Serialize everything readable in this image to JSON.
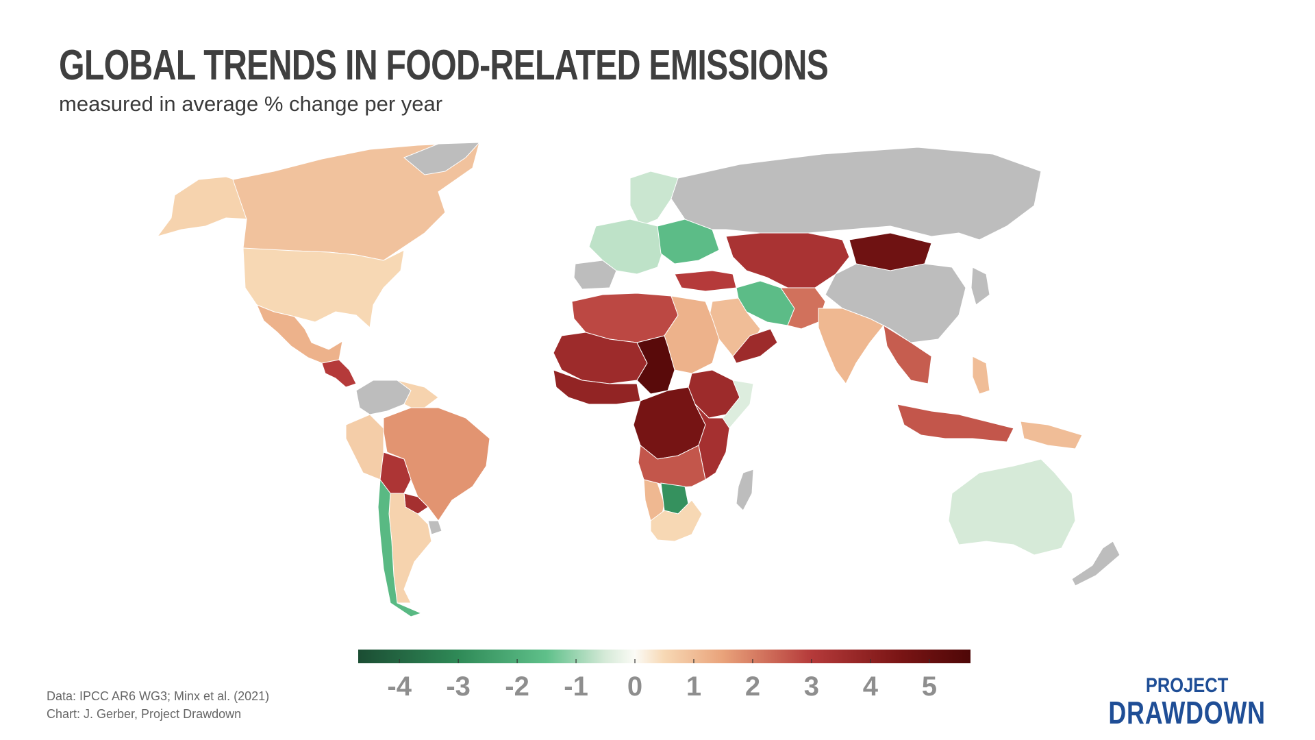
{
  "title": "GLOBAL TRENDS IN FOOD-RELATED EMISSIONS",
  "subtitle": "measured in average % change per year",
  "source": {
    "line1": "Data: IPCC AR6 WG3; Minx et al. (2021)",
    "line2": "Chart: J. Gerber, Project Drawdown"
  },
  "logo": {
    "line1": "PROJECT",
    "line2": "DRAWDOWN",
    "color": "#1f4e96"
  },
  "colors": {
    "no_data": "#bdbdbd",
    "background": "#ffffff",
    "scale": [
      {
        "v": -4.7,
        "c": "#1b4d33"
      },
      {
        "v": -3.0,
        "c": "#2f8a57"
      },
      {
        "v": -1.5,
        "c": "#5fc08a"
      },
      {
        "v": -0.5,
        "c": "#d6ead8"
      },
      {
        "v": 0.0,
        "c": "#fbfbf6"
      },
      {
        "v": 0.5,
        "c": "#f7d8b4"
      },
      {
        "v": 1.5,
        "c": "#e9a27a"
      },
      {
        "v": 3.0,
        "c": "#b53a3a"
      },
      {
        "v": 4.5,
        "c": "#7a1515"
      },
      {
        "v": 5.7,
        "c": "#4e0707"
      }
    ]
  },
  "legend": {
    "min": -4.7,
    "max": 5.7,
    "ticks": [
      "-4",
      "-3",
      "-2",
      "-1",
      "0",
      "1",
      "2",
      "3",
      "4",
      "5"
    ],
    "tick_values": [
      -4,
      -3,
      -2,
      -1,
      0,
      1,
      2,
      3,
      4,
      5
    ]
  },
  "regions": [
    {
      "name": "canada",
      "value": 0.9
    },
    {
      "name": "united-states",
      "value": 0.5
    },
    {
      "name": "alaska",
      "value": 0.6
    },
    {
      "name": "greenland",
      "value": null
    },
    {
      "name": "mexico",
      "value": 1.2
    },
    {
      "name": "central-america",
      "value": 3.0
    },
    {
      "name": "colombia-venezuela",
      "value": null
    },
    {
      "name": "guianas",
      "value": 0.6
    },
    {
      "name": "brazil",
      "value": 1.7
    },
    {
      "name": "peru",
      "value": 0.7
    },
    {
      "name": "bolivia",
      "value": 3.2
    },
    {
      "name": "paraguay",
      "value": 3.4
    },
    {
      "name": "chile",
      "value": -1.7
    },
    {
      "name": "argentina",
      "value": 0.6
    },
    {
      "name": "uruguay",
      "value": null
    },
    {
      "name": "western-europe",
      "value": -0.7
    },
    {
      "name": "scandinavia",
      "value": -0.6
    },
    {
      "name": "eastern-europe",
      "value": -1.6
    },
    {
      "name": "iberia",
      "value": null
    },
    {
      "name": "russia",
      "value": null
    },
    {
      "name": "kazakhstan-central-asia",
      "value": 3.3
    },
    {
      "name": "mongolia",
      "value": 4.8
    },
    {
      "name": "china",
      "value": null
    },
    {
      "name": "turkey",
      "value": 3.0
    },
    {
      "name": "iran",
      "value": -1.6
    },
    {
      "name": "middle-east",
      "value": 1.0
    },
    {
      "name": "oman-yemen",
      "value": 3.6
    },
    {
      "name": "pakistan-afghanistan",
      "value": 2.2
    },
    {
      "name": "india",
      "value": 1.1
    },
    {
      "name": "southeast-asia",
      "value": 2.5
    },
    {
      "name": "indonesia",
      "value": 2.6
    },
    {
      "name": "papua",
      "value": 1.0
    },
    {
      "name": "australia",
      "value": -0.5
    },
    {
      "name": "new-zealand",
      "value": null
    },
    {
      "name": "north-africa",
      "value": 2.8
    },
    {
      "name": "egypt-sudan",
      "value": 1.2
    },
    {
      "name": "sahel",
      "value": 3.6
    },
    {
      "name": "chad",
      "value": 5.4
    },
    {
      "name": "west-africa",
      "value": 3.9
    },
    {
      "name": "ethiopia",
      "value": 3.6
    },
    {
      "name": "somalia",
      "value": -0.4
    },
    {
      "name": "central-africa",
      "value": 4.6
    },
    {
      "name": "east-africa",
      "value": 3.4
    },
    {
      "name": "angola-zambia",
      "value": 2.6
    },
    {
      "name": "namibia",
      "value": 1.1
    },
    {
      "name": "botswana",
      "value": -2.8
    },
    {
      "name": "south-africa",
      "value": 0.5
    },
    {
      "name": "madagascar",
      "value": null
    },
    {
      "name": "japan",
      "value": null
    },
    {
      "name": "philippines",
      "value": 1.0
    }
  ]
}
